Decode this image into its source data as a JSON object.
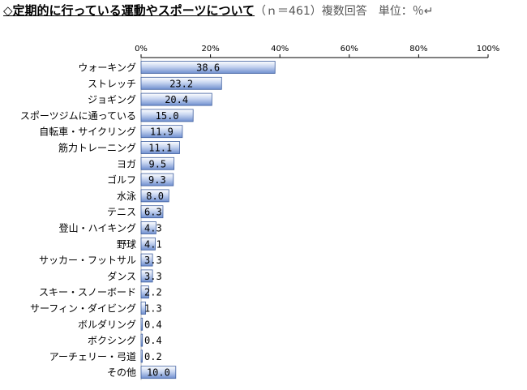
{
  "title": {
    "main": "◇定期的に行っている運動やスポーツについて",
    "sub": "（ｎ＝461）複数回答　単位：％",
    "mark": "↵"
  },
  "chart_data": {
    "type": "bar",
    "orientation": "horizontal",
    "categories": [
      "ウォーキング",
      "ストレッチ",
      "ジョギング",
      "スポーツジムに通っている",
      "自転車・サイクリング",
      "筋力トレーニング",
      "ヨガ",
      "ゴルフ",
      "水泳",
      "テニス",
      "登山・ハイキング",
      "野球",
      "サッカー・フットサル",
      "ダンス",
      "スキー・スノーボード",
      "サーフィン・ダイビング",
      "ボルダリング",
      "ボクシング",
      "アーチェリー・弓道",
      "その他"
    ],
    "values": [
      38.6,
      23.2,
      20.4,
      15.0,
      11.9,
      11.1,
      9.5,
      9.3,
      8.0,
      6.3,
      4.3,
      4.1,
      3.3,
      3.3,
      2.2,
      1.3,
      0.4,
      0.4,
      0.2,
      10.0
    ],
    "value_labels": [
      "38.6",
      "23.2",
      "20.4",
      "15.0",
      "11.9",
      "11.1",
      "9.5",
      "9.3",
      "8.0",
      "6.3",
      "4.3",
      "4.1",
      "3.3",
      "3.3",
      "2.2",
      "1.3",
      "0.4",
      "0.4",
      "0.2",
      "10.0"
    ],
    "xlim": [
      0,
      100
    ],
    "x_ticks": [
      0,
      20,
      40,
      60,
      80,
      100
    ],
    "x_tick_labels": [
      "0%",
      "20%",
      "40%",
      "60%",
      "80%",
      "100%"
    ],
    "grid": false,
    "colors": {
      "bar_light": "#ffffff",
      "bar_mid": "#c6d4f0",
      "bar_dark": "#6f8fcf",
      "bar_border": "#3f5f9f",
      "axis": "#000000"
    }
  }
}
